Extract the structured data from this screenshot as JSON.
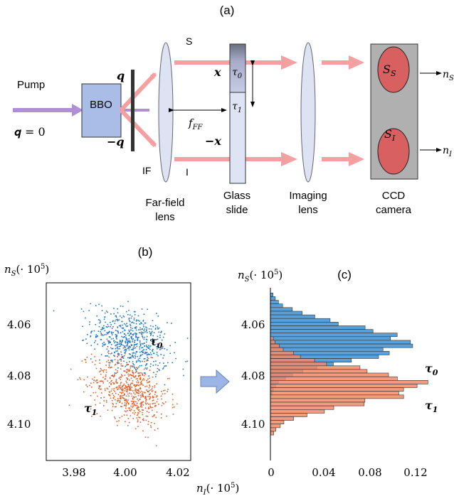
{
  "panel_a": {
    "label": "(a)",
    "pump": "Pump",
    "q_eq": "𝒒 = 0",
    "bbo": "BBO",
    "q_plus": "𝒒",
    "q_minus": "−𝒒",
    "if": "IF",
    "s": "S",
    "i": "I",
    "x_plus": "𝒙",
    "x_minus": "−𝒙",
    "tau0": "τ₀",
    "tau1": "τ₁",
    "fff": "f_FF",
    "ss": "S_S",
    "si": "S_I",
    "ns": "n_S",
    "ni": "n_I",
    "farfield": [
      "Far-field",
      "lens"
    ],
    "glass": [
      "Glass",
      "slide"
    ],
    "imaging": [
      "Imaging",
      "lens"
    ],
    "ccd": [
      "CCD",
      "camera"
    ]
  },
  "panel_b": {
    "label": "(b)",
    "ylabel": "n_S(· 10⁵)",
    "xlabel": "n_I(· 10⁵)",
    "yticks": [
      "4.06",
      "4.08",
      "4.10"
    ],
    "xticks": [
      "3.98",
      "4.00",
      "4.02"
    ],
    "tau0": "τ₀",
    "tau1": "τ₁"
  },
  "panel_c": {
    "label": "(c)",
    "ylabel": "n_S(· 10⁵)",
    "yticks": [
      "4.06",
      "4.08",
      "4.10"
    ],
    "xticks": [
      "0",
      "0.04",
      "0.08",
      "0.12"
    ],
    "tau0": "τ₀",
    "tau1": "τ₁"
  },
  "colors": {
    "beam": "#f4a0a0",
    "pump": "#b08fd6",
    "bbo": "#a9bde6",
    "blue": "#1f78c8",
    "orange": "#e0602a",
    "hist_blue": "#5aa0d8",
    "hist_orange": "#f08a68",
    "hist_brown": "#8c5a4a",
    "ccd_bg": "#b0b0b0",
    "spot": "#d96060"
  },
  "chart_data": [
    {
      "type": "scatter",
      "title": "(b)",
      "xlabel": "n_I(· 10⁵)",
      "ylabel": "n_S(· 10⁵)",
      "xlim": [
        3.97,
        4.027
      ],
      "ylim": [
        4.112,
        4.051
      ],
      "series": [
        {
          "name": "τ₀",
          "center": [
            4.003,
            4.071
          ],
          "std": [
            0.0075,
            0.0057
          ],
          "corr": -0.35,
          "n": 650
        },
        {
          "name": "τ₁",
          "center": [
            4.003,
            4.088
          ],
          "std": [
            0.0075,
            0.0057
          ],
          "corr": -0.35,
          "n": 650
        }
      ]
    },
    {
      "type": "bar",
      "title": "(c)",
      "orientation": "horizontal",
      "ylabel": "n_S(· 10⁵)",
      "ylim": [
        4.112,
        4.051
      ],
      "xlim": [
        0,
        0.135
      ],
      "bin_width": 0.00125,
      "series": [
        {
          "name": "τ₀",
          "center": 4.0715,
          "sigma": 0.0058,
          "peak": 0.125
        },
        {
          "name": "τ₁",
          "center": 4.0865,
          "sigma": 0.0058,
          "peak": 0.133
        }
      ]
    }
  ]
}
